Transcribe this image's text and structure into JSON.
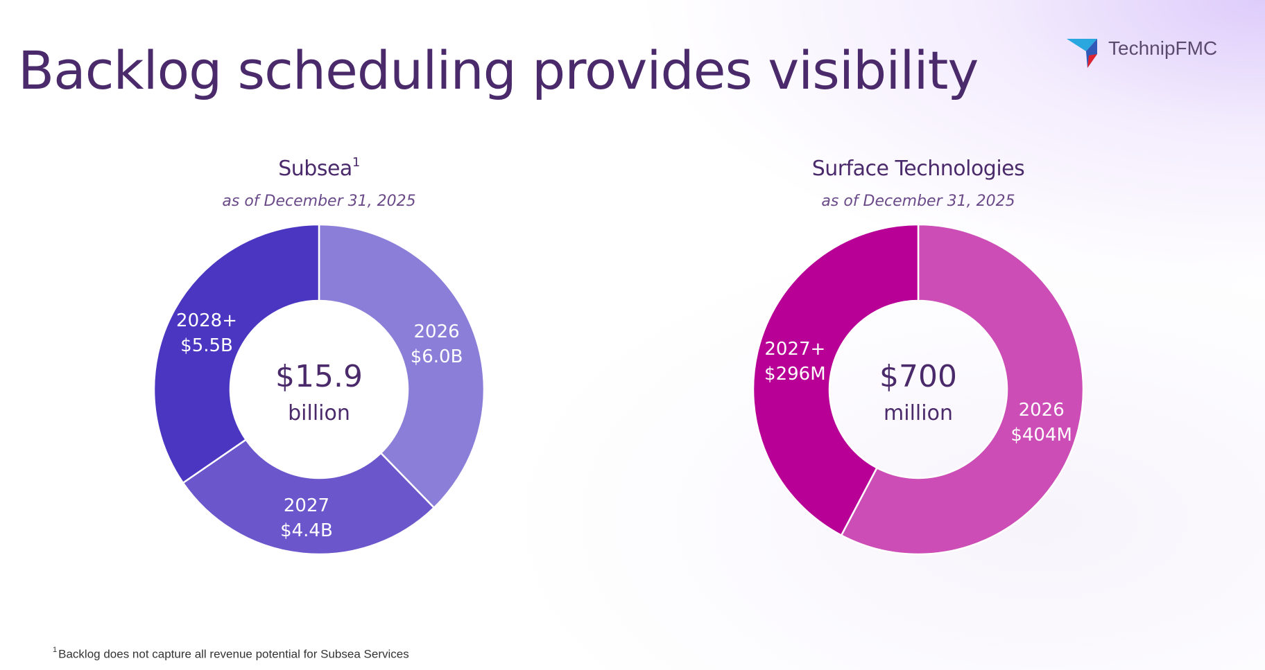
{
  "slide": {
    "title": "Backlog scheduling provides visibility",
    "logo_text": "TechnipFMC",
    "footnote_marker": "1",
    "footnote_text": "Backlog does not capture all revenue potential for Subsea Services"
  },
  "colors": {
    "title": "#4a2a6a",
    "subsea_2026": "#8b7ed8",
    "subsea_2027": "#6b56cc",
    "subsea_2028plus": "#4b36c2",
    "surface_2026": "#cc4db6",
    "surface_2027plus": "#b80096",
    "logo_cyan": "#2aa7df",
    "logo_blue": "#2f58b7",
    "logo_red": "#e0242f"
  },
  "chart_data": [
    {
      "type": "pie",
      "title": "Subsea",
      "title_superscript": "1",
      "subtitle": "as of December 31, 2025",
      "center_value": "$15.9",
      "center_unit": "billion",
      "unit": "$B",
      "slices": [
        {
          "category": "2026",
          "value": 6.0,
          "value_label": "$6.0B",
          "color": "#8b7ed8"
        },
        {
          "category": "2027",
          "value": 4.4,
          "value_label": "$4.4B",
          "color": "#6b56cc"
        },
        {
          "category": "2028+",
          "value": 5.5,
          "value_label": "$5.5B",
          "color": "#4b36c2"
        }
      ]
    },
    {
      "type": "pie",
      "title": "Surface Technologies",
      "subtitle": "as of December 31, 2025",
      "center_value": "$700",
      "center_unit": "million",
      "unit": "$M",
      "slices": [
        {
          "category": "2026",
          "value": 404,
          "value_label": "$404M",
          "color": "#cc4db6"
        },
        {
          "category": "2027+",
          "value": 296,
          "value_label": "$296M",
          "color": "#b80096"
        }
      ]
    }
  ]
}
